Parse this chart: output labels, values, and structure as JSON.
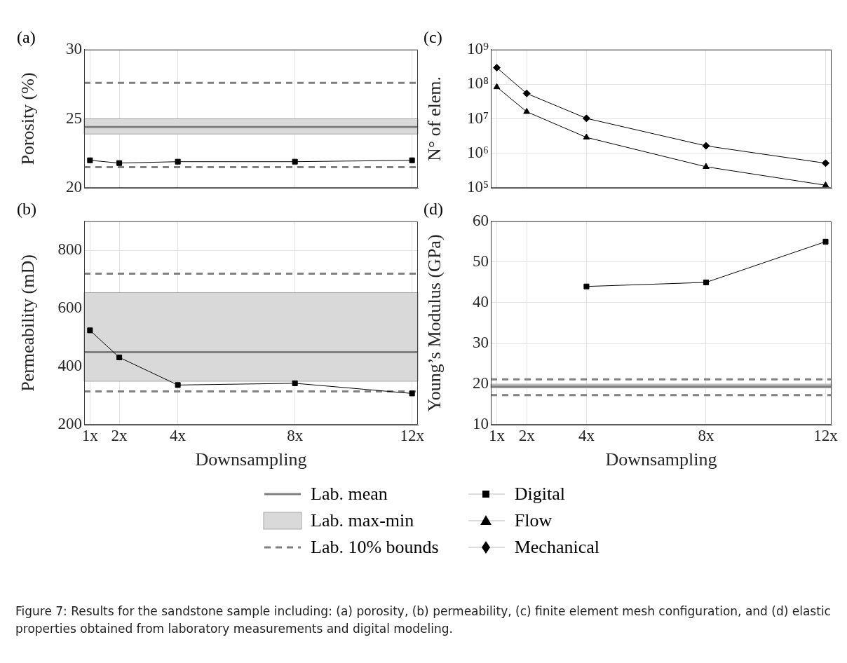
{
  "chart_data": [
    {
      "type": "line",
      "title": "(a)",
      "ylabel": "Porosity (%)",
      "x": [
        1,
        2,
        4,
        8,
        12
      ],
      "xlim": [
        0.8,
        12.2
      ],
      "xticks": [
        {
          "value": 1,
          "label": null
        },
        {
          "value": 2,
          "label": null
        },
        {
          "value": 4,
          "label": null
        },
        {
          "value": 8,
          "label": null
        },
        {
          "value": 12,
          "label": null
        }
      ],
      "ylim": [
        20,
        30
      ],
      "yticks": [
        20,
        25,
        30
      ],
      "tick_labels": "y",
      "grid": true,
      "legend": "bottom",
      "series": [
        {
          "name": "Digital",
          "color": "#000000",
          "marker": "square",
          "values": [
            22.0,
            21.8,
            21.9,
            21.9,
            22.0
          ]
        }
      ],
      "bands": [
        {
          "axis": "y",
          "from": 23.9,
          "to": 25.0,
          "label": "Lab. max-min",
          "color": "#d9d9d9"
        }
      ],
      "ref_lines": [
        {
          "axis": "y",
          "value": 24.4,
          "label": "Lab. mean",
          "color": "#808080",
          "line_style": "solid"
        },
        {
          "axis": "y",
          "value": 27.6,
          "label": "Lab. 10% bounds",
          "color": "#808080",
          "line_style": "dashed"
        },
        {
          "axis": "y",
          "value": 21.5,
          "color": "#808080",
          "line_style": "dashed"
        }
      ]
    },
    {
      "type": "line",
      "title": "(c)",
      "ylabel": "N° of elem.",
      "x": [
        1,
        2,
        4,
        8,
        12
      ],
      "xlim": [
        0.8,
        12.2
      ],
      "xticks": [
        {
          "value": 1,
          "label": null
        },
        {
          "value": 2,
          "label": null
        },
        {
          "value": 4,
          "label": null
        },
        {
          "value": 8,
          "label": null
        },
        {
          "value": 12,
          "label": null
        }
      ],
      "ylim": [
        100000,
        1000000000
      ],
      "yticks": [
        {
          "value": 100000,
          "label": "10⁵"
        },
        {
          "value": 1000000,
          "label": "10⁶"
        },
        {
          "value": 10000000,
          "label": "10⁷"
        },
        {
          "value": 100000000,
          "label": "10⁸"
        },
        {
          "value": 1000000000,
          "label": "10⁹"
        }
      ],
      "log": "y",
      "tick_labels": "y",
      "grid": true,
      "legend": "bottom",
      "series": [
        {
          "name": "Flow",
          "color": "#000000",
          "marker": "triangle",
          "values": [
            83000000,
            16000000,
            2900000,
            410000,
            120000
          ]
        },
        {
          "name": "Mechanical",
          "color": "#000000",
          "marker": "diamond",
          "values": [
            300000000,
            54000000,
            10300000,
            1650000,
            520000
          ]
        }
      ]
    },
    {
      "type": "line",
      "title": "(b)",
      "xlabel": "Downsampling",
      "ylabel": "Permeability (mD)",
      "x": [
        1,
        2,
        4,
        8,
        12
      ],
      "xlim": [
        0.8,
        12.2
      ],
      "xticks": [
        {
          "value": 1,
          "label": "1x"
        },
        {
          "value": 2,
          "label": "2x"
        },
        {
          "value": 4,
          "label": "4x"
        },
        {
          "value": 8,
          "label": "8x"
        },
        {
          "value": 12,
          "label": "12x"
        }
      ],
      "ylim": [
        200,
        900
      ],
      "yticks": [
        200,
        400,
        600,
        800
      ],
      "grid": true,
      "legend": "bottom",
      "series": [
        {
          "name": "Digital",
          "color": "#000000",
          "marker": "square",
          "values": [
            525,
            432,
            337,
            343,
            308
          ]
        }
      ],
      "bands": [
        {
          "axis": "y",
          "from": 350,
          "to": 655,
          "color": "#d9d9d9"
        }
      ],
      "ref_lines": [
        {
          "axis": "y",
          "value": 450,
          "color": "#808080",
          "line_style": "solid"
        },
        {
          "axis": "y",
          "value": 720,
          "color": "#808080",
          "line_style": "dashed"
        },
        {
          "axis": "y",
          "value": 315,
          "color": "#808080",
          "line_style": "dashed"
        }
      ]
    },
    {
      "type": "line",
      "title": "(d)",
      "xlabel": "Downsampling",
      "ylabel": "Young’s Modulus (GPa)",
      "xlim": [
        0.8,
        12.2
      ],
      "xticks": [
        {
          "value": 1,
          "label": "1x"
        },
        {
          "value": 2,
          "label": "2x"
        },
        {
          "value": 4,
          "label": "4x"
        },
        {
          "value": 8,
          "label": "8x"
        },
        {
          "value": 12,
          "label": "12x"
        }
      ],
      "ylim": [
        10,
        60
      ],
      "yticks": [
        10,
        20,
        30,
        40,
        50,
        60
      ],
      "grid": true,
      "legend": "bottom",
      "series": [
        {
          "name": "Digital",
          "color": "#000000",
          "marker": "square",
          "x": [
            4,
            8,
            12
          ],
          "values": [
            44,
            45,
            55
          ]
        }
      ],
      "bands": [
        {
          "axis": "y",
          "from": 19.1,
          "to": 20.0,
          "color": "#d9d9d9"
        }
      ],
      "ref_lines": [
        {
          "axis": "y",
          "value": 19.4,
          "color": "#808080",
          "line_style": "solid"
        },
        {
          "axis": "y",
          "value": 21.2,
          "color": "#808080",
          "line_style": "dashed"
        },
        {
          "axis": "y",
          "value": 17.3,
          "color": "#808080",
          "line_style": "dashed"
        }
      ],
      "annotations": [
        "Figure 7: Results for the sandstone sample including: (a) porosity, (b) permeability, (c) finite element mesh configuration, and (d) elastic properties obtained from laboratory measurements and digital modeling."
      ]
    }
  ]
}
